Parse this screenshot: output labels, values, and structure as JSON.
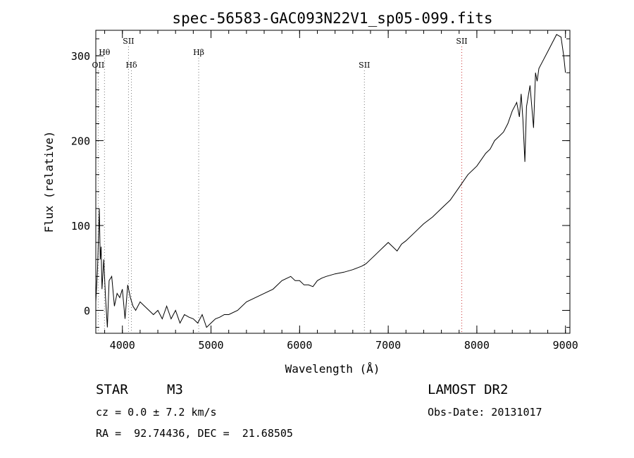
{
  "chart_data": {
    "type": "line",
    "title": "spec-56583-GAC093N22V1_sp05-099.fits",
    "xlabel": "Wavelength (Å)",
    "ylabel": "Flux (relative)",
    "xlim": [
      3700,
      9050
    ],
    "ylim": [
      -27,
      330
    ],
    "xticks": [
      4000,
      5000,
      6000,
      7000,
      8000,
      9000
    ],
    "yticks": [
      0,
      100,
      200,
      300
    ],
    "grid": false,
    "series": [
      {
        "color": "#000000",
        "x": [
          3700,
          3720,
          3740,
          3750,
          3760,
          3770,
          3790,
          3810,
          3830,
          3850,
          3880,
          3910,
          3940,
          3970,
          4000,
          4030,
          4060,
          4090,
          4120,
          4150,
          4200,
          4250,
          4300,
          4350,
          4400,
          4450,
          4500,
          4550,
          4600,
          4650,
          4700,
          4750,
          4800,
          4850,
          4900,
          4950,
          5000,
          5050,
          5100,
          5150,
          5200,
          5300,
          5400,
          5500,
          5600,
          5700,
          5800,
          5900,
          5950,
          6000,
          6050,
          6100,
          6150,
          6200,
          6250,
          6300,
          6400,
          6500,
          6600,
          6700,
          6750,
          6800,
          6850,
          6900,
          6950,
          7000,
          7050,
          7100,
          7150,
          7200,
          7300,
          7400,
          7500,
          7600,
          7650,
          7700,
          7800,
          7900,
          8000,
          8100,
          8150,
          8200,
          8250,
          8300,
          8350,
          8400,
          8450,
          8480,
          8500,
          8520,
          8542,
          8560,
          8600,
          8640,
          8662,
          8680,
          8700,
          8750,
          8800,
          8850,
          8900,
          8950,
          8980,
          9000
        ],
        "y": [
          10,
          50,
          120,
          60,
          75,
          25,
          60,
          15,
          -20,
          35,
          40,
          5,
          20,
          15,
          25,
          -10,
          30,
          15,
          5,
          0,
          10,
          5,
          0,
          -5,
          0,
          -10,
          5,
          -10,
          0,
          -15,
          -5,
          -8,
          -10,
          -15,
          -5,
          -20,
          -15,
          -10,
          -8,
          -5,
          -5,
          0,
          10,
          15,
          20,
          25,
          35,
          40,
          35,
          35,
          30,
          30,
          28,
          35,
          38,
          40,
          43,
          45,
          48,
          52,
          55,
          60,
          65,
          70,
          75,
          80,
          75,
          70,
          78,
          82,
          92,
          102,
          110,
          120,
          125,
          130,
          145,
          160,
          170,
          185,
          190,
          200,
          205,
          210,
          220,
          235,
          245,
          228,
          255,
          225,
          175,
          240,
          265,
          215,
          280,
          270,
          285,
          295,
          305,
          315,
          325,
          322,
          300,
          280
        ]
      }
    ],
    "annotations": [
      {
        "label": "OII",
        "x": 3727,
        "row": 3,
        "color": "#777777"
      },
      {
        "label": "Hθ",
        "x": 3798,
        "row": 2,
        "color": "#777777"
      },
      {
        "label": "SII",
        "x": 4069,
        "row": 1,
        "color": "#777777"
      },
      {
        "label": "Hδ",
        "x": 4102,
        "row": 3,
        "color": "#777777"
      },
      {
        "label": "Hβ",
        "x": 4861,
        "row": 2,
        "color": "#777777"
      },
      {
        "label": "SII",
        "x": 6731,
        "row": 3,
        "color": "#777777"
      },
      {
        "label": "SII",
        "x": 7830,
        "row": 1,
        "color": "#cc3333"
      }
    ]
  },
  "info": {
    "object_type": "STAR",
    "subclass": "M3",
    "survey": "LAMOST DR2",
    "velocity": "cz = 0.0 ± 7.2 km/s",
    "obs_date": "Obs-Date: 20131017",
    "coords": "RA =  92.74436, DEC =  21.68505"
  }
}
